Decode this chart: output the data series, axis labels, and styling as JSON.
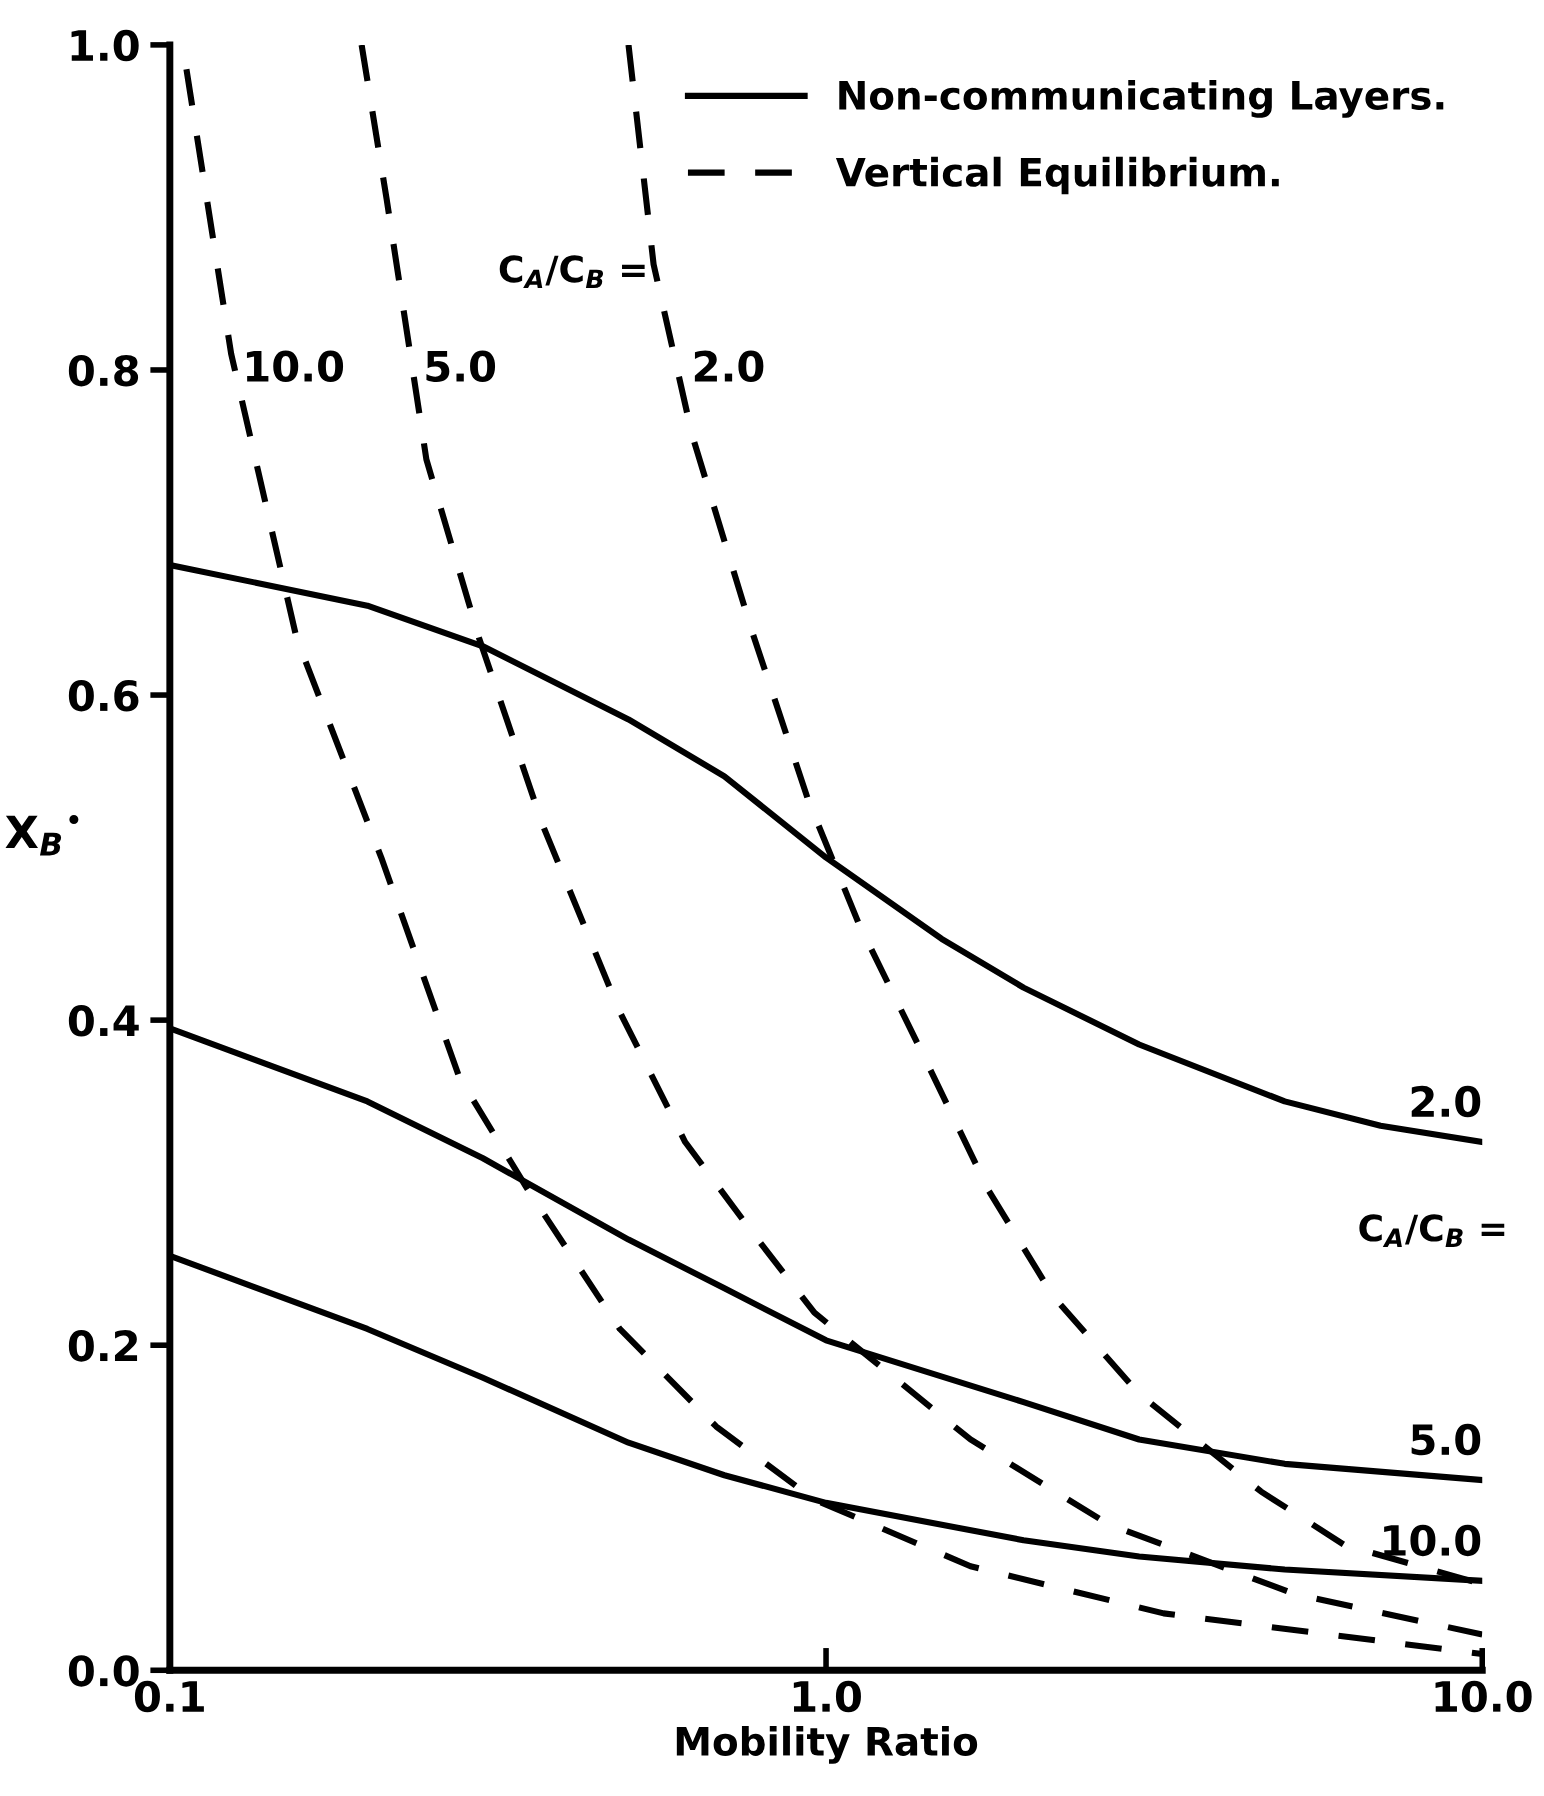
{
  "chart_data": {
    "type": "line",
    "xlabel": "Mobility Ratio",
    "ylabel": "X$_{B}$$^{•}$",
    "log": "x",
    "xlim": [
      0.1,
      10
    ],
    "ylim": [
      0,
      1
    ],
    "xticks": [
      0.1,
      {
        "value": 1,
        "label": "1.0"
      },
      {
        "value": 10,
        "label": "10.0"
      }
    ],
    "yticks": [
      {
        "value": 0,
        "label": "0.0"
      },
      0.2,
      0.4,
      0.6,
      0.8,
      {
        "value": 1,
        "label": "1.0"
      }
    ],
    "grid": false,
    "legend": "top right",
    "marker": "none",
    "annotations": [
      "C$_{A}$/C$_{B}$ =",
      "C$_{A}$/C$_{B}$ =",
      {
        "text": "10.0",
        "x": 0.124,
        "y": 0.8
      },
      {
        "text": "5.0",
        "x": 0.234,
        "y": 0.8
      },
      {
        "text": "2.0",
        "x": 0.6,
        "y": 0.8
      },
      {
        "text": "2.0",
        "x": 10,
        "y": 0.325
      },
      {
        "text": "5.0",
        "x": 10,
        "y": 0.117
      },
      {
        "text": "10.0",
        "x": 10,
        "y": 0.055
      }
    ],
    "series": [
      {
        "name": "Non-communicating Layers.",
        "color": "#000000",
        "line_style": "solid",
        "x": [
          0.1,
          0.2,
          0.3,
          0.5,
          0.7,
          1,
          1.5,
          2,
          3,
          5,
          7,
          10
        ],
        "values": [
          0.68,
          0.655,
          0.63,
          0.585,
          0.55,
          0.5,
          0.45,
          0.42,
          0.385,
          0.35,
          0.335,
          0.325
        ]
      },
      {
        "color": "#000000",
        "line_style": "solid",
        "x": [
          0.1,
          0.2,
          0.3,
          0.5,
          0.7,
          1,
          2,
          3,
          5,
          10
        ],
        "values": [
          0.395,
          0.35,
          0.315,
          0.265,
          0.235,
          0.203,
          0.165,
          0.142,
          0.127,
          0.117
        ]
      },
      {
        "color": "#000000",
        "line_style": "solid",
        "x": [
          0.1,
          0.2,
          0.3,
          0.5,
          0.7,
          1,
          2,
          3,
          5,
          10
        ],
        "values": [
          0.255,
          0.21,
          0.18,
          0.14,
          0.12,
          0.103,
          0.08,
          0.07,
          0.062,
          0.055
        ]
      },
      {
        "name": "Vertical Equilibrium.",
        "color": "#000000",
        "line_style": "dashed",
        "x": [
          0.106,
          0.124,
          0.156,
          0.21,
          0.276,
          0.352,
          0.485,
          0.68,
          0.96,
          1.66,
          3.27,
          10
        ],
        "values": [
          0.985,
          0.81,
          0.635,
          0.5,
          0.365,
          0.295,
          0.21,
          0.15,
          0.105,
          0.064,
          0.035,
          0.01
        ]
      },
      {
        "color": "#000000",
        "line_style": "dashed",
        "x": [
          0.196,
          0.214,
          0.246,
          0.296,
          0.37,
          0.485,
          0.61,
          0.77,
          0.96,
          1.66,
          2.69,
          5.17,
          10
        ],
        "values": [
          1.0,
          0.905,
          0.745,
          0.635,
          0.52,
          0.405,
          0.325,
          0.27,
          0.22,
          0.142,
          0.09,
          0.047,
          0.022
        ]
      },
      {
        "color": "#000000",
        "line_style": "dashed",
        "x": [
          0.5,
          0.546,
          0.625,
          0.77,
          0.94,
          1.12,
          1.42,
          1.77,
          2.22,
          3,
          4.6,
          6.17,
          10
        ],
        "values": [
          1.0,
          0.865,
          0.76,
          0.64,
          0.535,
          0.46,
          0.375,
          0.295,
          0.23,
          0.17,
          0.11,
          0.077,
          0.053
        ]
      }
    ]
  }
}
